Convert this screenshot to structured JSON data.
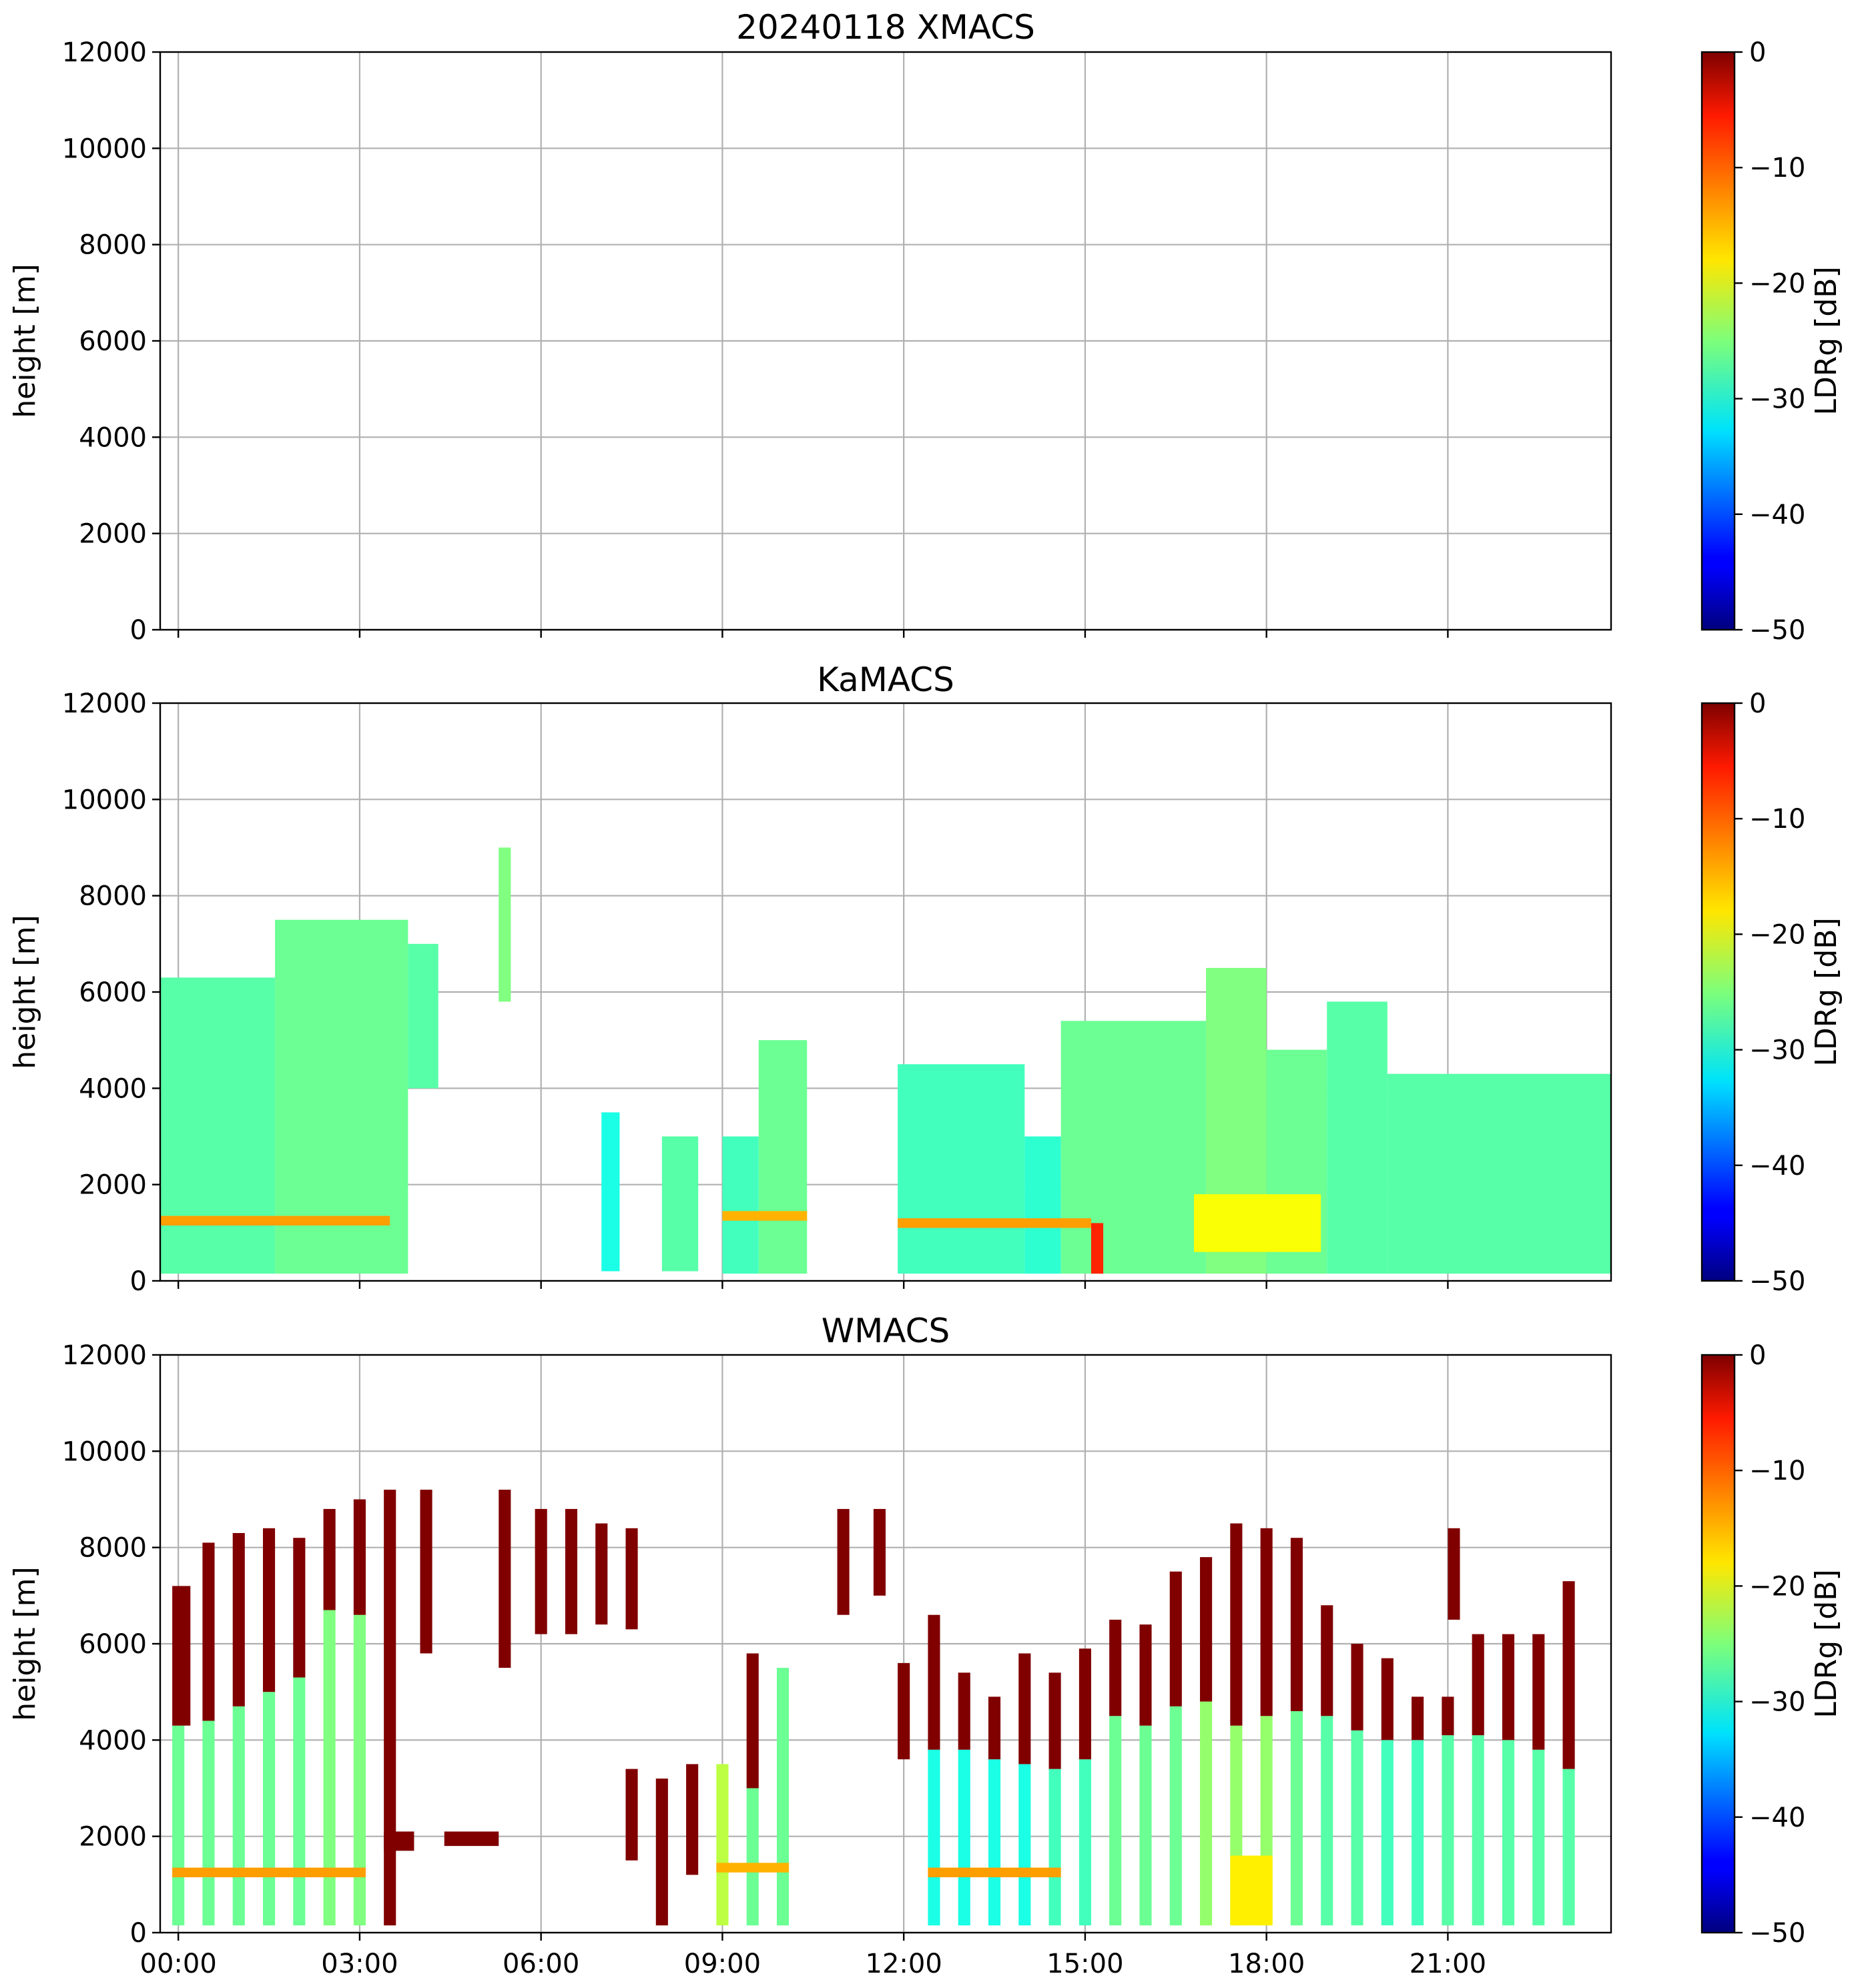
{
  "chart_data": [
    {
      "type": "heatmap",
      "title": "20240118 XMACS",
      "ylabel": "height [m]",
      "xlabel": "",
      "ylim": [
        0,
        12000
      ],
      "yticks": [
        0,
        2000,
        4000,
        6000,
        8000,
        10000,
        12000
      ],
      "xlim_hours": [
        -0.3,
        23.7
      ],
      "xticks": [
        "00:00",
        "03:00",
        "06:00",
        "09:00",
        "12:00",
        "15:00",
        "18:00",
        "21:00"
      ],
      "xtick_labels_shown": false,
      "grid": true,
      "colorbar": {
        "label": "LDRg [dB]",
        "range": [
          -50,
          0
        ],
        "ticks": [
          0,
          -10,
          -20,
          -30,
          -40,
          -50
        ],
        "colormap": "jet"
      },
      "echoes": []
    },
    {
      "type": "heatmap",
      "title": "KaMACS",
      "ylabel": "height [m]",
      "xlabel": "",
      "ylim": [
        0,
        12000
      ],
      "yticks": [
        0,
        2000,
        4000,
        6000,
        8000,
        10000,
        12000
      ],
      "xlim_hours": [
        -0.3,
        23.7
      ],
      "xticks": [
        "00:00",
        "03:00",
        "06:00",
        "09:00",
        "12:00",
        "15:00",
        "18:00",
        "21:00"
      ],
      "xtick_labels_shown": false,
      "grid": true,
      "colorbar": {
        "label": "LDRg [dB]",
        "range": [
          -50,
          0
        ],
        "ticks": [
          0,
          -10,
          -20,
          -30,
          -40,
          -50
        ],
        "colormap": "jet"
      },
      "echoes": [
        {
          "t0": -0.3,
          "t1": 1.6,
          "h0": 150,
          "h1": 6300,
          "ldr": -27
        },
        {
          "t0": 1.6,
          "t1": 3.8,
          "h0": 150,
          "h1": 7500,
          "ldr": -26
        },
        {
          "t0": 3.8,
          "t1": 4.3,
          "h0": 4000,
          "h1": 7000,
          "ldr": -27
        },
        {
          "t0": 5.3,
          "t1": 5.5,
          "h0": 5800,
          "h1": 9000,
          "ldr": -25
        },
        {
          "t0": 7.0,
          "t1": 7.3,
          "h0": 200,
          "h1": 3500,
          "ldr": -30
        },
        {
          "t0": 8.0,
          "t1": 8.6,
          "h0": 200,
          "h1": 3000,
          "ldr": -27
        },
        {
          "t0": 9.0,
          "t1": 9.6,
          "h0": 150,
          "h1": 3000,
          "ldr": -28
        },
        {
          "t0": 9.6,
          "t1": 10.4,
          "h0": 150,
          "h1": 5000,
          "ldr": -26
        },
        {
          "t0": 11.9,
          "t1": 14.0,
          "h0": 150,
          "h1": 4500,
          "ldr": -28
        },
        {
          "t0": 14.0,
          "t1": 14.6,
          "h0": 150,
          "h1": 3000,
          "ldr": -29
        },
        {
          "t0": 14.6,
          "t1": 17.0,
          "h0": 150,
          "h1": 5400,
          "ldr": -26
        },
        {
          "t0": 17.0,
          "t1": 18.0,
          "h0": 150,
          "h1": 6500,
          "ldr": -25
        },
        {
          "t0": 18.0,
          "t1": 19.0,
          "h0": 150,
          "h1": 4800,
          "ldr": -26
        },
        {
          "t0": 19.0,
          "t1": 20.0,
          "h0": 150,
          "h1": 5800,
          "ldr": -27
        },
        {
          "t0": 20.0,
          "t1": 23.7,
          "h0": 150,
          "h1": 4300,
          "ldr": -27
        },
        {
          "t0": -0.3,
          "t1": 3.5,
          "h0": 1150,
          "h1": 1350,
          "ldr": -14
        },
        {
          "t0": 9.0,
          "t1": 10.4,
          "h0": 1250,
          "h1": 1450,
          "ldr": -15
        },
        {
          "t0": 11.9,
          "t1": 15.1,
          "h0": 1100,
          "h1": 1300,
          "ldr": -14
        },
        {
          "t0": 15.1,
          "t1": 15.3,
          "h0": 150,
          "h1": 1200,
          "ldr": -8
        },
        {
          "t0": 16.8,
          "t1": 18.9,
          "h0": 600,
          "h1": 1800,
          "ldr": -19
        }
      ]
    },
    {
      "type": "heatmap",
      "title": "WMACS",
      "ylabel": "height [m]",
      "xlabel": "",
      "ylim": [
        0,
        12000
      ],
      "yticks": [
        0,
        2000,
        4000,
        6000,
        8000,
        10000,
        12000
      ],
      "xlim_hours": [
        -0.3,
        23.7
      ],
      "xticks": [
        "00:00",
        "03:00",
        "06:00",
        "09:00",
        "12:00",
        "15:00",
        "18:00",
        "21:00"
      ],
      "xtick_labels_shown": true,
      "grid": true,
      "colorbar": {
        "label": "LDRg [dB]",
        "range": [
          -50,
          0
        ],
        "ticks": [
          0,
          -10,
          -20,
          -30,
          -40,
          -50
        ],
        "colormap": "jet"
      },
      "echoes": [
        {
          "t0": -0.1,
          "t1": 0.1,
          "h0": 150,
          "h1": 4300,
          "ldr": -26
        },
        {
          "t0": -0.1,
          "t1": 0.2,
          "h0": 4300,
          "h1": 7200,
          "ldr": 0
        },
        {
          "t0": 0.4,
          "t1": 0.6,
          "h0": 150,
          "h1": 4400,
          "ldr": -26
        },
        {
          "t0": 0.4,
          "t1": 0.6,
          "h0": 4400,
          "h1": 8100,
          "ldr": 0
        },
        {
          "t0": 0.9,
          "t1": 1.1,
          "h0": 150,
          "h1": 4700,
          "ldr": -26
        },
        {
          "t0": 0.9,
          "t1": 1.1,
          "h0": 4700,
          "h1": 8300,
          "ldr": 0
        },
        {
          "t0": 1.4,
          "t1": 1.6,
          "h0": 150,
          "h1": 5000,
          "ldr": -26
        },
        {
          "t0": 1.4,
          "t1": 1.6,
          "h0": 5000,
          "h1": 8400,
          "ldr": 0
        },
        {
          "t0": 1.9,
          "t1": 2.1,
          "h0": 150,
          "h1": 5300,
          "ldr": -26
        },
        {
          "t0": 1.9,
          "t1": 2.1,
          "h0": 5300,
          "h1": 8200,
          "ldr": 0
        },
        {
          "t0": 2.4,
          "t1": 2.6,
          "h0": 150,
          "h1": 6700,
          "ldr": -25
        },
        {
          "t0": 2.4,
          "t1": 2.6,
          "h0": 6700,
          "h1": 8800,
          "ldr": 0
        },
        {
          "t0": 2.9,
          "t1": 3.1,
          "h0": 150,
          "h1": 6600,
          "ldr": -25
        },
        {
          "t0": 2.9,
          "t1": 3.1,
          "h0": 6600,
          "h1": 9000,
          "ldr": 0
        },
        {
          "t0": 3.4,
          "t1": 3.6,
          "h0": 150,
          "h1": 9200,
          "ldr": 0
        },
        {
          "t0": 4.0,
          "t1": 4.2,
          "h0": 5800,
          "h1": 9200,
          "ldr": 0
        },
        {
          "t0": 5.3,
          "t1": 5.5,
          "h0": 5500,
          "h1": 9200,
          "ldr": 0
        },
        {
          "t0": 5.9,
          "t1": 6.1,
          "h0": 6200,
          "h1": 8800,
          "ldr": 0
        },
        {
          "t0": 6.4,
          "t1": 6.6,
          "h0": 6200,
          "h1": 8800,
          "ldr": 0
        },
        {
          "t0": 6.9,
          "t1": 7.1,
          "h0": 6400,
          "h1": 8500,
          "ldr": 0
        },
        {
          "t0": 7.4,
          "t1": 7.6,
          "h0": 6300,
          "h1": 8400,
          "ldr": 0
        },
        {
          "t0": 3.4,
          "t1": 3.9,
          "h0": 1700,
          "h1": 2100,
          "ldr": 0
        },
        {
          "t0": 4.4,
          "t1": 5.3,
          "h0": 1800,
          "h1": 2100,
          "ldr": 0
        },
        {
          "t0": 7.4,
          "t1": 7.6,
          "h0": 1500,
          "h1": 3400,
          "ldr": 0
        },
        {
          "t0": 7.9,
          "t1": 8.1,
          "h0": 150,
          "h1": 3200,
          "ldr": 0
        },
        {
          "t0": 8.4,
          "t1": 8.6,
          "h0": 1200,
          "h1": 3500,
          "ldr": 0
        },
        {
          "t0": 8.9,
          "t1": 9.1,
          "h0": 150,
          "h1": 3500,
          "ldr": -22
        },
        {
          "t0": 9.4,
          "t1": 9.6,
          "h0": 150,
          "h1": 3000,
          "ldr": -26
        },
        {
          "t0": 9.4,
          "t1": 9.6,
          "h0": 3000,
          "h1": 5800,
          "ldr": 0
        },
        {
          "t0": 9.9,
          "t1": 10.1,
          "h0": 150,
          "h1": 5500,
          "ldr": -26
        },
        {
          "t0": 10.9,
          "t1": 11.1,
          "h0": 6600,
          "h1": 8800,
          "ldr": 0
        },
        {
          "t0": 11.5,
          "t1": 11.7,
          "h0": 7000,
          "h1": 8800,
          "ldr": 0
        },
        {
          "t0": 11.9,
          "t1": 12.1,
          "h0": 3600,
          "h1": 5600,
          "ldr": 0
        },
        {
          "t0": 12.4,
          "t1": 12.6,
          "h0": 150,
          "h1": 3800,
          "ldr": -30
        },
        {
          "t0": 12.4,
          "t1": 12.6,
          "h0": 3800,
          "h1": 6600,
          "ldr": 0
        },
        {
          "t0": 12.9,
          "t1": 13.1,
          "h0": 150,
          "h1": 3800,
          "ldr": -30
        },
        {
          "t0": 12.9,
          "t1": 13.1,
          "h0": 3800,
          "h1": 5400,
          "ldr": 0
        },
        {
          "t0": 13.4,
          "t1": 13.6,
          "h0": 150,
          "h1": 3600,
          "ldr": -30
        },
        {
          "t0": 13.4,
          "t1": 13.6,
          "h0": 3600,
          "h1": 4900,
          "ldr": 0
        },
        {
          "t0": 13.9,
          "t1": 14.1,
          "h0": 150,
          "h1": 3500,
          "ldr": -30
        },
        {
          "t0": 13.9,
          "t1": 14.1,
          "h0": 3500,
          "h1": 5800,
          "ldr": 0
        },
        {
          "t0": 14.4,
          "t1": 14.6,
          "h0": 150,
          "h1": 3400,
          "ldr": -28
        },
        {
          "t0": 14.4,
          "t1": 14.6,
          "h0": 3400,
          "h1": 5400,
          "ldr": 0
        },
        {
          "t0": 14.9,
          "t1": 15.1,
          "h0": 150,
          "h1": 3600,
          "ldr": -28
        },
        {
          "t0": 14.9,
          "t1": 15.1,
          "h0": 3600,
          "h1": 5900,
          "ldr": 0
        },
        {
          "t0": 15.4,
          "t1": 15.6,
          "h0": 150,
          "h1": 4500,
          "ldr": -26
        },
        {
          "t0": 15.4,
          "t1": 15.6,
          "h0": 4500,
          "h1": 6500,
          "ldr": 0
        },
        {
          "t0": 15.9,
          "t1": 16.1,
          "h0": 150,
          "h1": 4300,
          "ldr": -26
        },
        {
          "t0": 15.9,
          "t1": 16.1,
          "h0": 4300,
          "h1": 6400,
          "ldr": 0
        },
        {
          "t0": 16.4,
          "t1": 16.6,
          "h0": 150,
          "h1": 4700,
          "ldr": -26
        },
        {
          "t0": 16.4,
          "t1": 16.6,
          "h0": 4700,
          "h1": 7500,
          "ldr": 0
        },
        {
          "t0": 16.9,
          "t1": 17.1,
          "h0": 150,
          "h1": 4800,
          "ldr": -24
        },
        {
          "t0": 16.9,
          "t1": 17.1,
          "h0": 4800,
          "h1": 7800,
          "ldr": 0
        },
        {
          "t0": 17.4,
          "t1": 17.6,
          "h0": 150,
          "h1": 4300,
          "ldr": -24
        },
        {
          "t0": 17.4,
          "t1": 17.6,
          "h0": 4300,
          "h1": 8500,
          "ldr": 0
        },
        {
          "t0": 17.9,
          "t1": 18.1,
          "h0": 150,
          "h1": 4500,
          "ldr": -24
        },
        {
          "t0": 17.9,
          "t1": 18.1,
          "h0": 4500,
          "h1": 8400,
          "ldr": 0
        },
        {
          "t0": 18.4,
          "t1": 18.6,
          "h0": 150,
          "h1": 4600,
          "ldr": -26
        },
        {
          "t0": 18.4,
          "t1": 18.6,
          "h0": 4600,
          "h1": 8200,
          "ldr": 0
        },
        {
          "t0": 18.9,
          "t1": 19.1,
          "h0": 150,
          "h1": 4500,
          "ldr": -27
        },
        {
          "t0": 18.9,
          "t1": 19.1,
          "h0": 4500,
          "h1": 6800,
          "ldr": 0
        },
        {
          "t0": 19.4,
          "t1": 19.6,
          "h0": 150,
          "h1": 4200,
          "ldr": -27
        },
        {
          "t0": 19.4,
          "t1": 19.6,
          "h0": 4200,
          "h1": 6000,
          "ldr": 0
        },
        {
          "t0": 19.9,
          "t1": 20.1,
          "h0": 150,
          "h1": 4000,
          "ldr": -28
        },
        {
          "t0": 19.9,
          "t1": 20.1,
          "h0": 4000,
          "h1": 5700,
          "ldr": 0
        },
        {
          "t0": 20.4,
          "t1": 20.6,
          "h0": 150,
          "h1": 4000,
          "ldr": -28
        },
        {
          "t0": 20.4,
          "t1": 20.6,
          "h0": 4000,
          "h1": 4900,
          "ldr": 0
        },
        {
          "t0": 20.9,
          "t1": 21.1,
          "h0": 150,
          "h1": 4100,
          "ldr": -27
        },
        {
          "t0": 20.9,
          "t1": 21.1,
          "h0": 4100,
          "h1": 4900,
          "ldr": 0
        },
        {
          "t0": 21.0,
          "t1": 21.2,
          "h0": 6500,
          "h1": 8400,
          "ldr": 0
        },
        {
          "t0": 21.4,
          "t1": 21.6,
          "h0": 150,
          "h1": 4100,
          "ldr": -27
        },
        {
          "t0": 21.4,
          "t1": 21.6,
          "h0": 4100,
          "h1": 6200,
          "ldr": 0
        },
        {
          "t0": 21.9,
          "t1": 22.1,
          "h0": 150,
          "h1": 4000,
          "ldr": -27
        },
        {
          "t0": 21.9,
          "t1": 22.1,
          "h0": 4000,
          "h1": 6200,
          "ldr": 0
        },
        {
          "t0": 22.4,
          "t1": 22.6,
          "h0": 150,
          "h1": 3800,
          "ldr": -27
        },
        {
          "t0": 22.4,
          "t1": 22.6,
          "h0": 3800,
          "h1": 6200,
          "ldr": 0
        },
        {
          "t0": 22.9,
          "t1": 23.1,
          "h0": 150,
          "h1": 3400,
          "ldr": -27
        },
        {
          "t0": 22.9,
          "t1": 23.1,
          "h0": 3400,
          "h1": 7300,
          "ldr": 0
        },
        {
          "t0": -0.1,
          "t1": 3.1,
          "h0": 1150,
          "h1": 1350,
          "ldr": -14
        },
        {
          "t0": 8.9,
          "t1": 10.1,
          "h0": 1250,
          "h1": 1450,
          "ldr": -15
        },
        {
          "t0": 12.4,
          "t1": 14.6,
          "h0": 1150,
          "h1": 1350,
          "ldr": -14
        },
        {
          "t0": 17.4,
          "t1": 18.1,
          "h0": 150,
          "h1": 1600,
          "ldr": -18
        }
      ]
    }
  ]
}
